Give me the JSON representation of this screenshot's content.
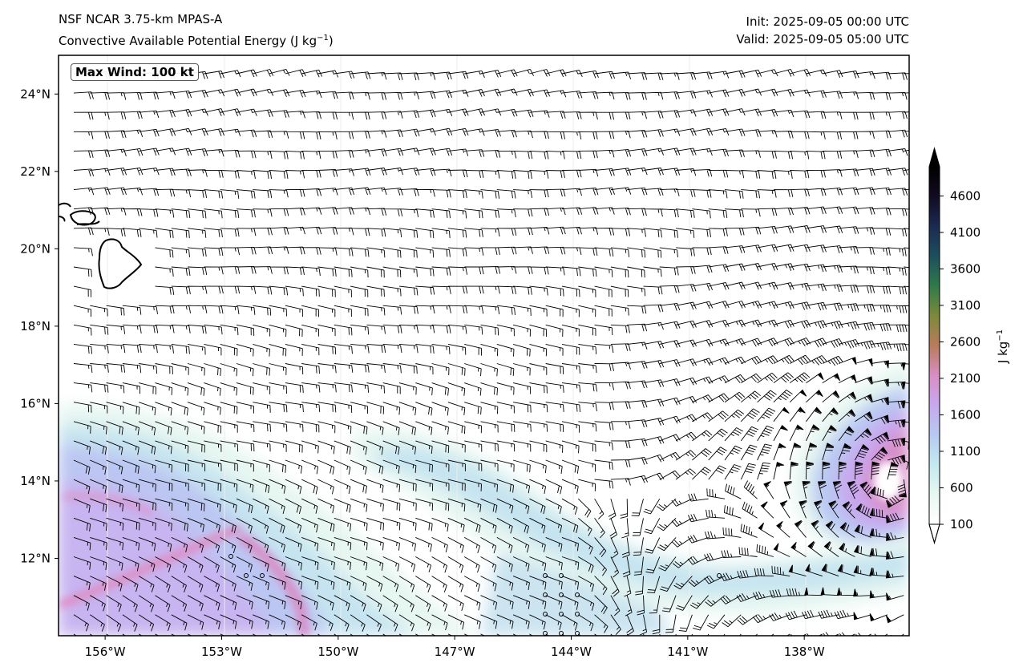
{
  "header": {
    "model": "NSF NCAR 3.75-km MPAS-A",
    "field": "Convective Available Potential Energy (J kg",
    "field_sup": "−1",
    "field_close": ")",
    "init": "Init: 2025-09-05 00:00 UTC",
    "valid": "Valid: 2025-09-05 05:00 UTC"
  },
  "annotation": {
    "max_wind": "Max Wind: 100 kt"
  },
  "map": {
    "lon_range": [
      -157.2,
      -135.3
    ],
    "lat_range": [
      10.0,
      25.0
    ],
    "lon_ticks": [
      {
        "value": -156,
        "label": "156°W"
      },
      {
        "value": -153,
        "label": "153°W"
      },
      {
        "value": -150,
        "label": "150°W"
      },
      {
        "value": -147,
        "label": "147°W"
      },
      {
        "value": -144,
        "label": "144°W"
      },
      {
        "value": -141,
        "label": "141°W"
      },
      {
        "value": -138,
        "label": "138°W"
      }
    ],
    "lat_ticks": [
      {
        "value": 12,
        "label": "12°N"
      },
      {
        "value": 14,
        "label": "14°N"
      },
      {
        "value": 16,
        "label": "16°N"
      },
      {
        "value": 18,
        "label": "18°N"
      },
      {
        "value": 20,
        "label": "20°N"
      },
      {
        "value": 22,
        "label": "22°N"
      },
      {
        "value": 24,
        "label": "24°N"
      }
    ],
    "barb_color": "#000000",
    "coastline_color": "#000000",
    "features": [
      "Hawaiian Islands coastline",
      "tropical cyclone circulation near 135.7°W 14°N"
    ]
  },
  "colorbar": {
    "label": "J kg",
    "label_sup": "−1",
    "ticks": [
      {
        "value": 100,
        "label": "100"
      },
      {
        "value": 600,
        "label": "600"
      },
      {
        "value": 1100,
        "label": "1100"
      },
      {
        "value": 1600,
        "label": "1600"
      },
      {
        "value": 2100,
        "label": "2100"
      },
      {
        "value": 2600,
        "label": "2600"
      },
      {
        "value": 3100,
        "label": "3100"
      },
      {
        "value": 3600,
        "label": "3600"
      },
      {
        "value": 4100,
        "label": "4100"
      },
      {
        "value": 4600,
        "label": "4600"
      }
    ],
    "range": [
      100,
      5000
    ],
    "extend": "both",
    "colors": [
      "#ffffff",
      "#e8f7f2",
      "#c3e9ef",
      "#b7c9f0",
      "#c6a9ee",
      "#d98ec4",
      "#b87b5c",
      "#7c8a3a",
      "#2f7a4a",
      "#1d4f5d",
      "#1b2a52",
      "#120b22",
      "#000000"
    ]
  }
}
